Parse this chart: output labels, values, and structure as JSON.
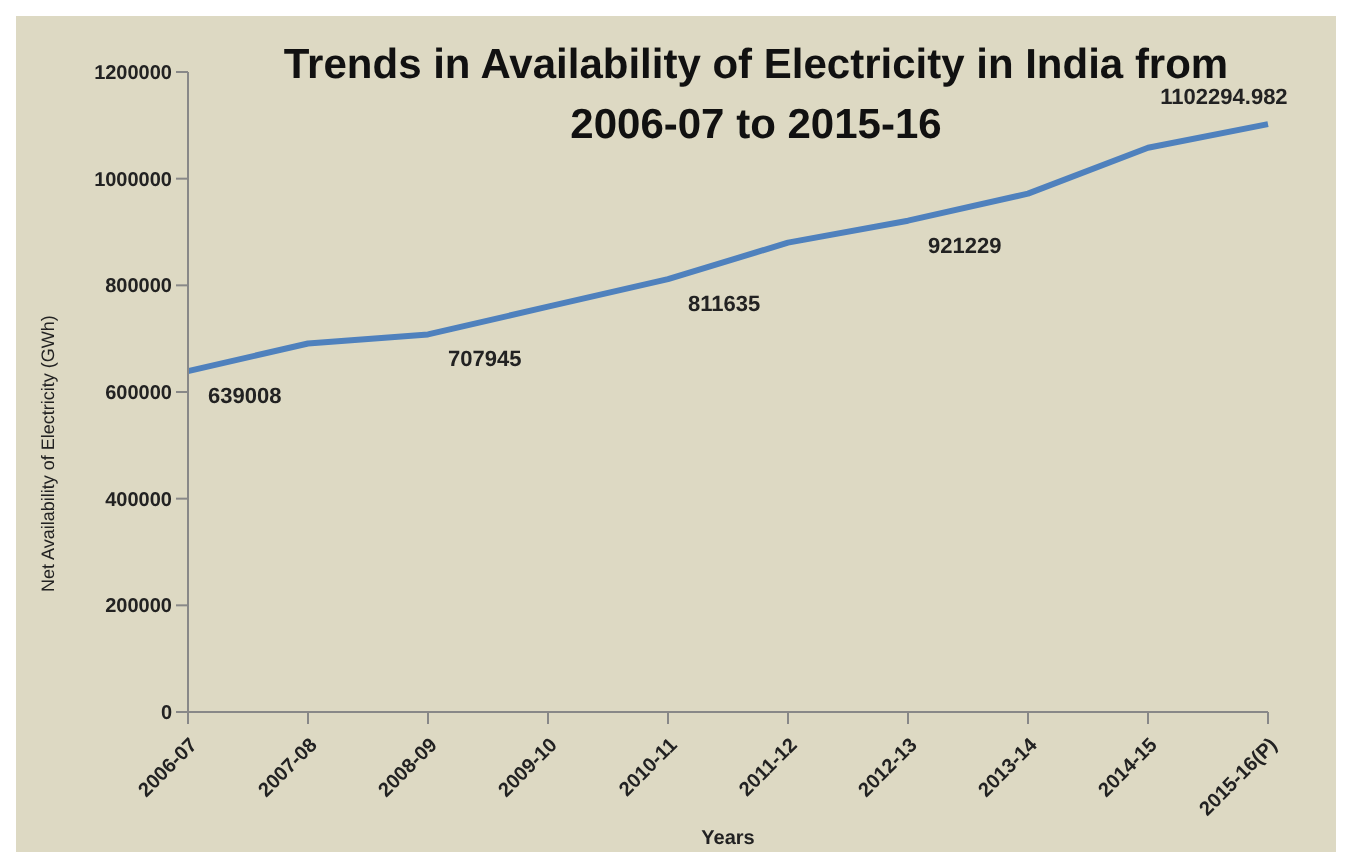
{
  "chart_data": {
    "type": "line",
    "title": "Trends in Availability of Electricity in India from 2006-07 to 2015-16",
    "xlabel": "Years",
    "ylabel": "Net Availability of Electricity (GWh)",
    "categories": [
      "2006-07",
      "2007-08",
      "2008-09",
      "2009-10",
      "2010-11",
      "2011-12",
      "2012-13",
      "2013-14",
      "2014-15",
      "2015-16(P)"
    ],
    "series": [
      {
        "color": "#4f81bd",
        "values": [
          639008,
          691000,
          707945,
          760000,
          811635,
          880000,
          921229,
          972000,
          1058000,
          1102294.982
        ],
        "value_labels": [
          "639008",
          null,
          "707945",
          null,
          "811635",
          null,
          "921229",
          null,
          null,
          "1102294.982"
        ]
      }
    ],
    "ylim": [
      0,
      1200000
    ],
    "yticks": [
      0,
      200000,
      400000,
      600000,
      800000,
      1000000,
      1200000
    ],
    "grid": false,
    "legend": false,
    "marker": "none",
    "line_style": "solid"
  }
}
